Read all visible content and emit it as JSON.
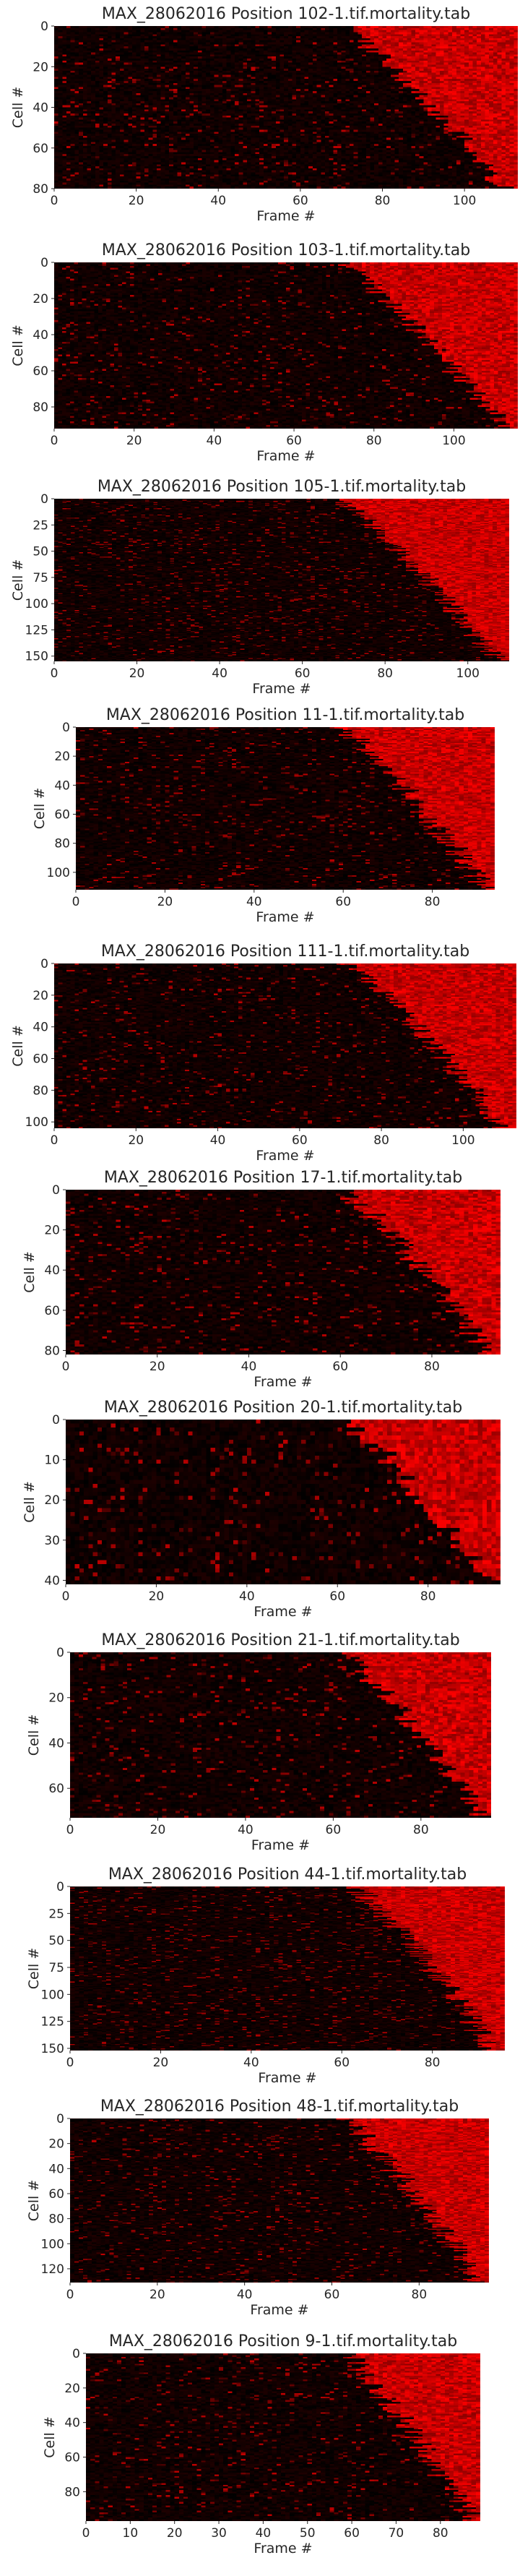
{
  "colors": {
    "background": "#ffffff",
    "low": "#000000",
    "high": "#ff0000",
    "text": "#262626"
  },
  "chart_data": [
    {
      "type": "heatmap",
      "title": "MAX_28062016 Position 102-1.tif.mortality.tab",
      "xlabel": "Frame #",
      "ylabel": "Cell #",
      "xlim": [
        0,
        113
      ],
      "ylim": [
        80,
        0
      ],
      "xticks": [
        0,
        20,
        40,
        60,
        80,
        100
      ],
      "yticks": [
        0,
        20,
        40,
        60,
        80
      ],
      "rows": 80,
      "cols": 113
    },
    {
      "type": "heatmap",
      "title": "MAX_28062016 Position 103-1.tif.mortality.tab",
      "xlabel": "Frame #",
      "ylabel": "Cell #",
      "xlim": [
        0,
        116
      ],
      "ylim": [
        92,
        0
      ],
      "xticks": [
        0,
        20,
        40,
        60,
        80,
        100
      ],
      "yticks": [
        0,
        20,
        40,
        60,
        80
      ],
      "rows": 92,
      "cols": 116
    },
    {
      "type": "heatmap",
      "title": "MAX_28062016 Position 105-1.tif.mortality.tab",
      "xlabel": "Frame #",
      "ylabel": "Cell #",
      "xlim": [
        0,
        110
      ],
      "ylim": [
        155,
        0
      ],
      "xticks": [
        0,
        20,
        40,
        60,
        80,
        100
      ],
      "yticks": [
        0,
        25,
        50,
        75,
        100,
        125,
        150
      ],
      "rows": 155,
      "cols": 110
    },
    {
      "type": "heatmap",
      "title": "MAX_28062016 Position 11-1.tif.mortality.tab",
      "xlabel": "Frame #",
      "ylabel": "Cell #",
      "xlim": [
        0,
        94
      ],
      "ylim": [
        112,
        0
      ],
      "xticks": [
        0,
        20,
        40,
        60,
        80
      ],
      "yticks": [
        0,
        20,
        40,
        60,
        80,
        100
      ],
      "rows": 112,
      "cols": 94
    },
    {
      "type": "heatmap",
      "title": "MAX_28062016 Position 111-1.tif.mortality.tab",
      "xlabel": "Frame #",
      "ylabel": "Cell #",
      "xlim": [
        0,
        113
      ],
      "ylim": [
        104,
        0
      ],
      "xticks": [
        0,
        20,
        40,
        60,
        80,
        100
      ],
      "yticks": [
        0,
        20,
        40,
        60,
        80,
        100
      ],
      "rows": 104,
      "cols": 113
    },
    {
      "type": "heatmap",
      "title": "MAX_28062016 Position 17-1.tif.mortality.tab",
      "xlabel": "Frame #",
      "ylabel": "Cell #",
      "xlim": [
        0,
        95
      ],
      "ylim": [
        82,
        0
      ],
      "xticks": [
        0,
        20,
        40,
        60,
        80
      ],
      "yticks": [
        0,
        20,
        40,
        60,
        80
      ],
      "rows": 82,
      "cols": 95
    },
    {
      "type": "heatmap",
      "title": "MAX_28062016 Position 20-1.tif.mortality.tab",
      "xlabel": "Frame #",
      "ylabel": "Cell #",
      "xlim": [
        0,
        96
      ],
      "ylim": [
        41,
        0
      ],
      "xticks": [
        0,
        20,
        40,
        60,
        80
      ],
      "yticks": [
        0,
        10,
        20,
        30,
        40
      ],
      "rows": 41,
      "cols": 96
    },
    {
      "type": "heatmap",
      "title": "MAX_28062016 Position 21-1.tif.mortality.tab",
      "xlabel": "Frame #",
      "ylabel": "Cell #",
      "xlim": [
        0,
        96
      ],
      "ylim": [
        73,
        0
      ],
      "xticks": [
        0,
        20,
        40,
        60,
        80
      ],
      "yticks": [
        0,
        20,
        40,
        60
      ],
      "rows": 73,
      "cols": 96
    },
    {
      "type": "heatmap",
      "title": "MAX_28062016 Position 44-1.tif.mortality.tab",
      "xlabel": "Frame #",
      "ylabel": "Cell #",
      "xlim": [
        0,
        96
      ],
      "ylim": [
        152,
        0
      ],
      "xticks": [
        0,
        20,
        40,
        60,
        80
      ],
      "yticks": [
        0,
        25,
        50,
        75,
        100,
        125,
        150
      ],
      "rows": 152,
      "cols": 96
    },
    {
      "type": "heatmap",
      "title": "MAX_28062016 Position 48-1.tif.mortality.tab",
      "xlabel": "Frame #",
      "ylabel": "Cell #",
      "xlim": [
        0,
        96
      ],
      "ylim": [
        131,
        0
      ],
      "xticks": [
        0,
        20,
        40,
        60,
        80
      ],
      "yticks": [
        0,
        20,
        40,
        60,
        80,
        100,
        120
      ],
      "rows": 131,
      "cols": 96
    },
    {
      "type": "heatmap",
      "title": "MAX_28062016 Position 9-1.tif.mortality.tab",
      "xlabel": "Frame #",
      "ylabel": "Cell #",
      "xlim": [
        0,
        89
      ],
      "ylim": [
        97,
        0
      ],
      "xticks": [
        0,
        10,
        20,
        30,
        40,
        50,
        60,
        70,
        80
      ],
      "yticks": [
        0,
        20,
        40,
        60,
        80
      ],
      "rows": 97,
      "cols": 89
    }
  ]
}
